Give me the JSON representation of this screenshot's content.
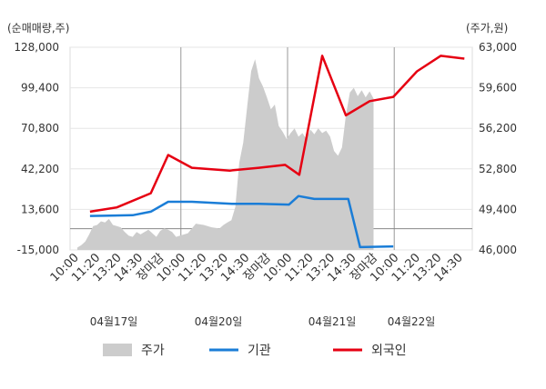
{
  "chart_data": {
    "type": "line",
    "left_axis_unit": "(순매매량,주)",
    "right_axis_unit": "(주가,원)",
    "left_axis": {
      "ticks": [
        "128,000",
        "99,400",
        "70,800",
        "42,200",
        "13,600",
        "-15,000"
      ],
      "range": [
        -15000,
        128000
      ]
    },
    "right_axis": {
      "ticks": [
        "63,000",
        "59,600",
        "56,200",
        "52,800",
        "49,400",
        "46,000"
      ],
      "range": [
        46000,
        63000
      ]
    },
    "x_ticks": [
      {
        "label": "10:00",
        "color": "#333333"
      },
      {
        "label": "11:20",
        "color": "#333333"
      },
      {
        "label": "13:20",
        "color": "#333333"
      },
      {
        "label": "14:30",
        "color": "#333333"
      },
      {
        "label": "장마감",
        "color": "#e60012"
      },
      {
        "label": "10:00",
        "color": "#333333"
      },
      {
        "label": "11:20",
        "color": "#333333"
      },
      {
        "label": "13:20",
        "color": "#333333"
      },
      {
        "label": "14:30",
        "color": "#333333"
      },
      {
        "label": "장마감",
        "color": "#e60012"
      },
      {
        "label": "10:00",
        "color": "#333333"
      },
      {
        "label": "11:20",
        "color": "#333333"
      },
      {
        "label": "13:20",
        "color": "#333333"
      },
      {
        "label": "14:30",
        "color": "#333333"
      },
      {
        "label": "장마감",
        "color": "#e60012"
      },
      {
        "label": "10:00",
        "color": "#333333"
      },
      {
        "label": "11:20",
        "color": "#333333"
      },
      {
        "label": "13:20",
        "color": "#333333"
      },
      {
        "label": "14:30",
        "color": "#333333"
      }
    ],
    "date_labels": [
      {
        "label": "04월17일",
        "day": 0
      },
      {
        "label": "04월20일",
        "day": 1
      },
      {
        "label": "04월21일",
        "day": 2
      },
      {
        "label": "04월22일",
        "day": 3
      }
    ],
    "series": [
      {
        "name": "주가",
        "axis": "right",
        "style": "area",
        "color": "#cccccc",
        "points": [
          [
            0.0,
            46200
          ],
          [
            0.5,
            46400
          ],
          [
            1.0,
            46700
          ],
          [
            1.5,
            47300
          ],
          [
            2.0,
            48000
          ],
          [
            2.5,
            48100
          ],
          [
            3.0,
            48400
          ],
          [
            3.5,
            48300
          ],
          [
            4.0,
            48600
          ],
          [
            4.5,
            48100
          ],
          [
            5.0,
            48000
          ],
          [
            5.5,
            47900
          ],
          [
            6.0,
            47500
          ],
          [
            6.5,
            47200
          ],
          [
            7.0,
            47100
          ],
          [
            7.5,
            47500
          ],
          [
            8.0,
            47300
          ],
          [
            9.0,
            47700
          ],
          [
            10.0,
            47100
          ],
          [
            10.5,
            47600
          ],
          [
            11.0,
            47800
          ],
          [
            11.5,
            47700
          ],
          [
            12.0,
            47500
          ],
          [
            12.5,
            47100
          ],
          [
            13.0,
            47200
          ],
          [
            14.0,
            47400
          ],
          [
            15.0,
            48200
          ],
          [
            16.0,
            48100
          ],
          [
            17.0,
            47900
          ],
          [
            18.0,
            47800
          ],
          [
            18.5,
            48100
          ],
          [
            19.0,
            48300
          ],
          [
            19.5,
            48500
          ],
          [
            20.0,
            49600
          ],
          [
            20.5,
            53300
          ],
          [
            21.0,
            55000
          ],
          [
            21.5,
            58000
          ],
          [
            22.0,
            61000
          ],
          [
            22.5,
            62000
          ],
          [
            23.0,
            60400
          ],
          [
            23.5,
            59700
          ],
          [
            24.0,
            58800
          ],
          [
            24.5,
            57800
          ],
          [
            25.0,
            58200
          ],
          [
            25.5,
            56400
          ],
          [
            26.0,
            55900
          ],
          [
            26.5,
            55300
          ],
          [
            27.0,
            55800
          ],
          [
            27.5,
            56200
          ],
          [
            28.0,
            55500
          ],
          [
            28.5,
            55800
          ],
          [
            29.0,
            55300
          ],
          [
            29.5,
            56100
          ],
          [
            30.0,
            55700
          ],
          [
            30.5,
            56200
          ],
          [
            31.0,
            55800
          ],
          [
            31.5,
            56000
          ],
          [
            32.0,
            55500
          ],
          [
            32.5,
            54300
          ],
          [
            33.0,
            53900
          ],
          [
            33.5,
            54600
          ],
          [
            34.0,
            57300
          ],
          [
            34.5,
            59200
          ],
          [
            35.0,
            59600
          ],
          [
            35.5,
            58900
          ],
          [
            36.0,
            59400
          ],
          [
            36.5,
            58800
          ],
          [
            37.0,
            59300
          ],
          [
            37.5,
            58700
          ]
        ]
      },
      {
        "name": "기관",
        "axis": "left",
        "style": "line",
        "color": "#1a7dd7",
        "points": [
          [
            1.6,
            9000
          ],
          [
            7.0,
            9500
          ],
          [
            9.3,
            12000
          ],
          [
            11.5,
            19000
          ],
          [
            14.5,
            19000
          ],
          [
            19.7,
            17500
          ],
          [
            23.0,
            17500
          ],
          [
            26.8,
            17000
          ],
          [
            28.0,
            23000
          ],
          [
            30.0,
            21000
          ],
          [
            34.3,
            21000
          ],
          [
            35.8,
            -13000
          ],
          [
            40.0,
            -12500
          ]
        ]
      },
      {
        "name": "외국인",
        "axis": "left",
        "style": "line",
        "color": "#e60012",
        "points": [
          [
            1.6,
            12000
          ],
          [
            5.0,
            15000
          ],
          [
            9.3,
            25000
          ],
          [
            11.5,
            52000
          ],
          [
            14.5,
            43000
          ],
          [
            19.3,
            41000
          ],
          [
            23.0,
            43000
          ],
          [
            26.3,
            45000
          ],
          [
            28.1,
            38000
          ],
          [
            31.0,
            122000
          ],
          [
            34.0,
            80000
          ],
          [
            37.0,
            90000
          ],
          [
            40.0,
            93000
          ],
          [
            43.0,
            111000
          ],
          [
            46.0,
            122000
          ],
          [
            49.0,
            120000
          ]
        ]
      }
    ],
    "legend": [
      {
        "label": "주가",
        "color": "#cccccc",
        "kind": "box"
      },
      {
        "label": "기관",
        "color": "#1a7dd7",
        "kind": "line"
      },
      {
        "label": "외국인",
        "color": "#e60012",
        "kind": "line"
      }
    ],
    "grid": true,
    "legend_position": "bottom"
  }
}
